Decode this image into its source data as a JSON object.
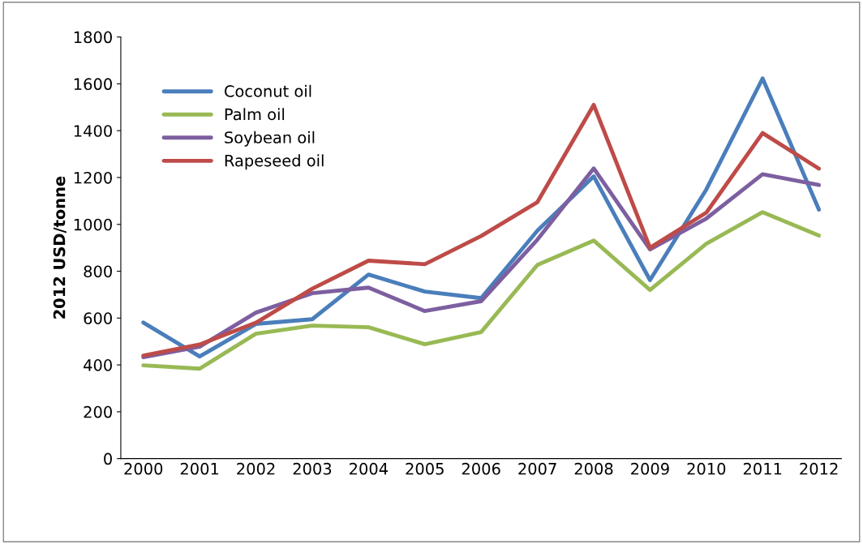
{
  "chart_data": {
    "type": "line",
    "ylabel": "2012 USD/tonne",
    "categories": [
      "2000",
      "2001",
      "2002",
      "2003",
      "2004",
      "2005",
      "2006",
      "2007",
      "2008",
      "2009",
      "2010",
      "2011",
      "2012"
    ],
    "series": [
      {
        "name": "Coconut oil",
        "color": "#4a7ebb",
        "values": [
          581,
          436,
          575,
          595,
          786,
          713,
          685,
          973,
          1205,
          762,
          1149,
          1623,
          1063
        ]
      },
      {
        "name": "Palm oil",
        "color": "#98b954",
        "values": [
          398,
          384,
          533,
          568,
          561,
          488,
          540,
          827,
          931,
          720,
          917,
          1052,
          952
        ]
      },
      {
        "name": "Soybean oil",
        "color": "#7d5fa0",
        "values": [
          433,
          478,
          623,
          706,
          730,
          630,
          672,
          935,
          1239,
          893,
          1025,
          1214,
          1168
        ]
      },
      {
        "name": "Rapeseed oil",
        "color": "#be4b48",
        "values": [
          440,
          487,
          580,
          725,
          845,
          830,
          950,
          1095,
          1510,
          900,
          1050,
          1390,
          1238
        ]
      }
    ],
    "ylim": [
      0,
      1800
    ],
    "yticks": [
      0,
      200,
      400,
      600,
      800,
      1000,
      1200,
      1400,
      1600,
      1800
    ],
    "grid": false,
    "legend": "top left",
    "marker": "none",
    "line_style": "solid"
  }
}
